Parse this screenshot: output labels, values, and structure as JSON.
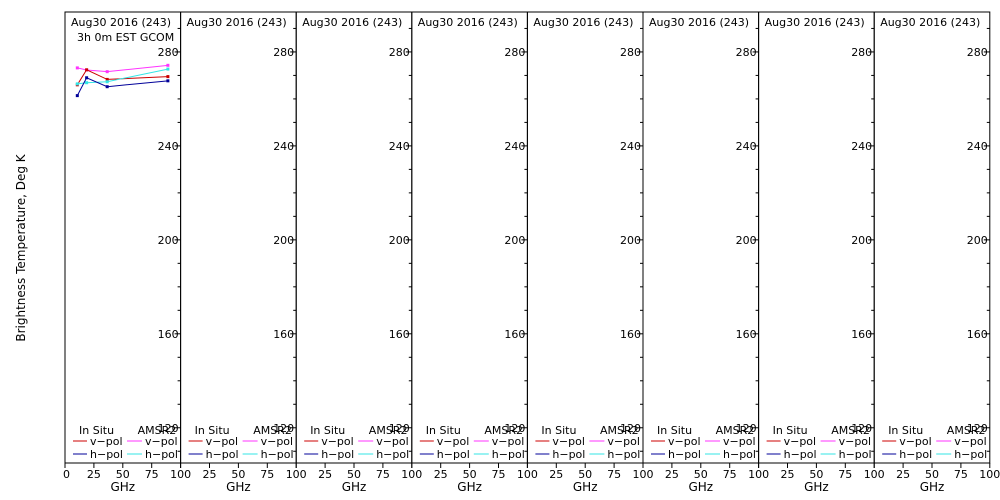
{
  "chart_data": {
    "type": "line",
    "ylabel": "Brightness Temperature, Deg K",
    "xlabel": "GHz",
    "ylim": [
      105,
      297
    ],
    "xlim": [
      0,
      100
    ],
    "yticks": [
      120,
      160,
      200,
      240,
      280
    ],
    "xticks": [
      0,
      25,
      50,
      75,
      100
    ],
    "xtick_labels_first": [
      "0",
      "25",
      "50",
      "75",
      "100"
    ],
    "xtick_labels_rest": [
      "25",
      "50",
      "75",
      "100"
    ],
    "legend": {
      "in_situ": "In Situ",
      "amsr2": "AMSR2",
      "v_pol": "v−pol",
      "h_pol": "h−pol"
    },
    "colors": {
      "in_situ_v": "#cc0000",
      "in_situ_h": "#000099",
      "amsr2_v": "#ff33ff",
      "amsr2_h": "#33e6e6"
    },
    "panels": [
      {
        "title": "Aug30 2016 (243)",
        "subtitle": "3h 0m EST GCOM",
        "series": [
          {
            "key": "amsr2_v",
            "x": [
              10.65,
              18.7,
              36.5,
              89.0
            ],
            "y": [
              273.2,
              272.3,
              271.6,
              274.3
            ]
          },
          {
            "key": "in_situ_v",
            "x": [
              10.65,
              18.7,
              36.5,
              89.0
            ],
            "y": [
              266.0,
              272.4,
              268.3,
              269.5
            ]
          },
          {
            "key": "amsr2_h",
            "x": [
              10.65,
              18.7,
              36.5,
              89.0
            ],
            "y": [
              266.4,
              266.9,
              267.3,
              272.7
            ]
          },
          {
            "key": "in_situ_h",
            "x": [
              10.65,
              18.7,
              36.5,
              89.0
            ],
            "y": [
              261.4,
              269.0,
              265.2,
              267.7
            ]
          }
        ]
      },
      {
        "title": "Aug30 2016 (243)",
        "subtitle": "",
        "series": []
      },
      {
        "title": "Aug30 2016 (243)",
        "subtitle": "",
        "series": []
      },
      {
        "title": "Aug30 2016 (243)",
        "subtitle": "",
        "series": []
      },
      {
        "title": "Aug30 2016 (243)",
        "subtitle": "",
        "series": []
      },
      {
        "title": "Aug30 2016 (243)",
        "subtitle": "",
        "series": []
      },
      {
        "title": "Aug30 2016 (243)",
        "subtitle": "",
        "series": []
      },
      {
        "title": "Aug30 2016 (243)",
        "subtitle": "",
        "series": []
      }
    ]
  }
}
